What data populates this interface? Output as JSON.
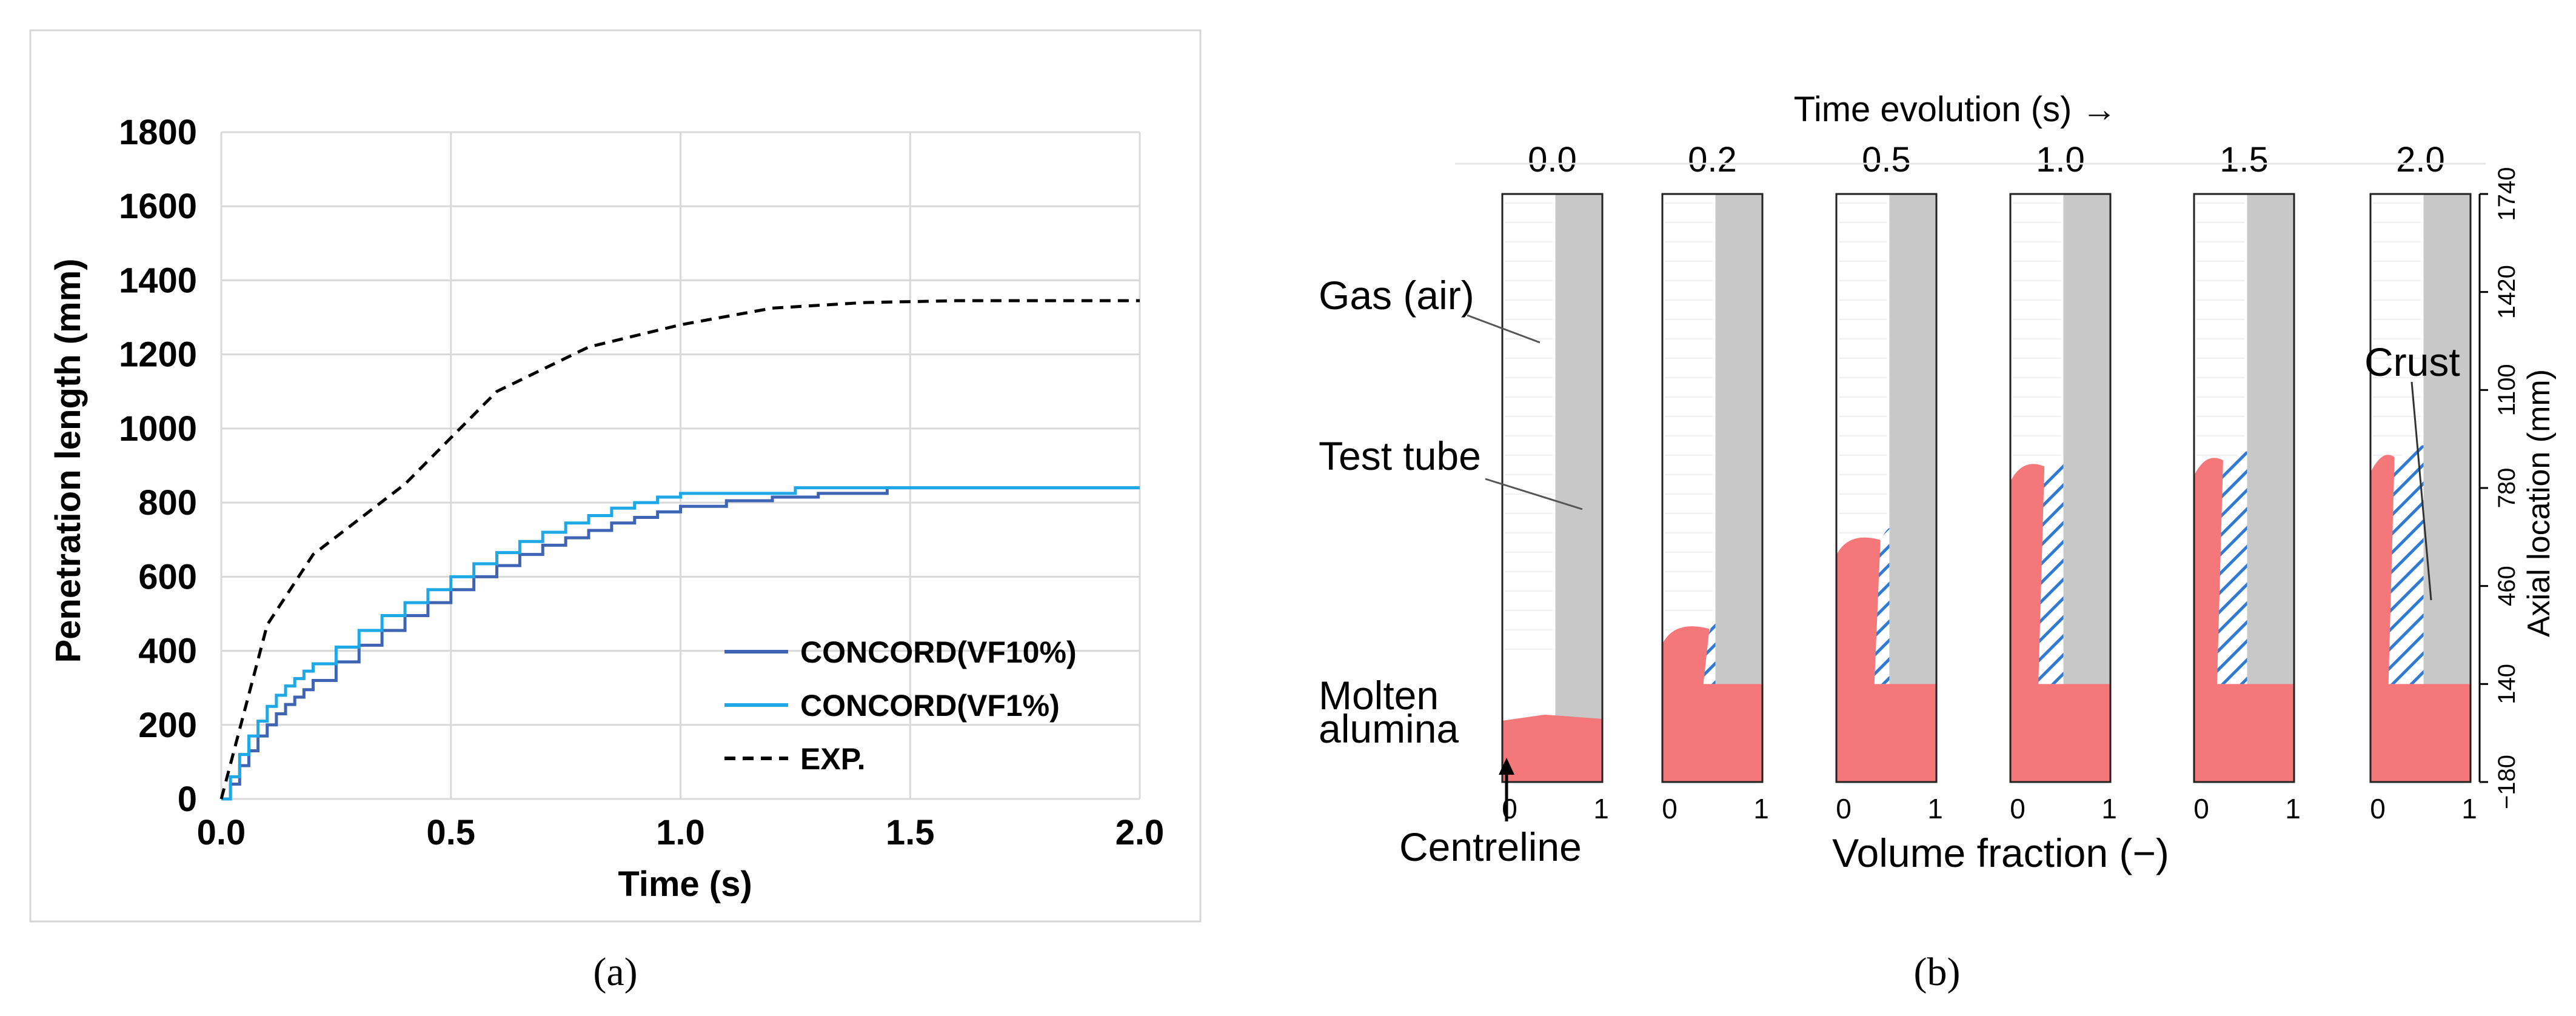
{
  "panels": {
    "a_caption": "(a)",
    "b_caption": "(b)"
  },
  "chart_data": [
    {
      "panel": "a",
      "type": "line",
      "title": "",
      "xlabel": "Time (s)",
      "ylabel": "Penetration length (mm)",
      "xlim": [
        0,
        2.0
      ],
      "ylim": [
        0,
        1800
      ],
      "xticks": [
        "0.0",
        "0.5",
        "1.0",
        "1.5",
        "2.0"
      ],
      "yticks": [
        "0",
        "200",
        "400",
        "600",
        "800",
        "1000",
        "1200",
        "1400",
        "1600",
        "1800"
      ],
      "grid": true,
      "legend_position": "bottom-right",
      "series": [
        {
          "name": "CONCORD(VF10%)",
          "color": "#3f64b4",
          "style": "step",
          "x": [
            0,
            0.02,
            0.04,
            0.06,
            0.08,
            0.1,
            0.12,
            0.14,
            0.16,
            0.18,
            0.2,
            0.25,
            0.3,
            0.35,
            0.4,
            0.45,
            0.5,
            0.55,
            0.6,
            0.65,
            0.7,
            0.75,
            0.8,
            0.85,
            0.9,
            0.95,
            1.0,
            1.1,
            1.2,
            1.3,
            1.45,
            2.0
          ],
          "y": [
            0,
            40,
            90,
            130,
            170,
            200,
            230,
            255,
            275,
            295,
            320,
            370,
            415,
            455,
            495,
            530,
            565,
            600,
            630,
            660,
            685,
            705,
            725,
            745,
            760,
            775,
            790,
            805,
            815,
            825,
            840,
            840
          ]
        },
        {
          "name": "CONCORD(VF1%)",
          "color": "#1ea8e6",
          "style": "step",
          "x": [
            0,
            0.02,
            0.04,
            0.06,
            0.08,
            0.1,
            0.12,
            0.14,
            0.16,
            0.18,
            0.2,
            0.25,
            0.3,
            0.35,
            0.4,
            0.45,
            0.5,
            0.55,
            0.6,
            0.65,
            0.7,
            0.75,
            0.8,
            0.85,
            0.9,
            0.95,
            1.0,
            1.25,
            2.0
          ],
          "y": [
            0,
            60,
            120,
            170,
            210,
            250,
            280,
            305,
            325,
            345,
            365,
            410,
            455,
            495,
            530,
            565,
            600,
            635,
            665,
            695,
            720,
            745,
            765,
            785,
            800,
            815,
            825,
            840,
            840
          ]
        },
        {
          "name": "EXP.",
          "color": "#000000",
          "style": "dashed",
          "x": [
            0,
            0.1,
            0.2,
            0.4,
            0.6,
            0.8,
            1.0,
            1.2,
            1.4,
            1.6,
            2.0
          ],
          "y": [
            0,
            470,
            660,
            850,
            1100,
            1220,
            1280,
            1325,
            1340,
            1345,
            1345
          ]
        }
      ]
    },
    {
      "panel": "b",
      "type": "other",
      "title": "Time evolution (s) →",
      "xlabel": "Volume fraction (−)",
      "ylabel": "Axial location (mm)",
      "time_labels": [
        "0.0",
        "0.2",
        "0.5",
        "1.0",
        "1.5",
        "2.0"
      ],
      "x_ticks": [
        "0",
        "1"
      ],
      "axial_ticks": [
        "−180",
        "140",
        "460",
        "780",
        "1100",
        "1420",
        "1740"
      ],
      "ylim": [
        -180,
        1740
      ],
      "annotations": [
        "Gas (air)",
        "Test tube",
        "Molten",
        "alumina",
        "Centreline",
        "Crust"
      ],
      "legend": [],
      "colors": {
        "molten": "#f4787a",
        "crust": "#2f7ad3",
        "tube": "#c8c8c8"
      },
      "snapshots": [
        {
          "time": 0.0,
          "melt_front_mm": 30,
          "crust_top_mm": null,
          "crust_width": 0.0
        },
        {
          "time": 0.2,
          "melt_front_mm": 350,
          "crust_top_mm": 350,
          "crust_width": 0.12
        },
        {
          "time": 0.5,
          "melt_front_mm": 640,
          "crust_top_mm": 650,
          "crust_width": 0.15
        },
        {
          "time": 1.0,
          "melt_front_mm": 880,
          "crust_top_mm": 880,
          "crust_width": 0.25
        },
        {
          "time": 1.5,
          "melt_front_mm": 900,
          "crust_top_mm": 900,
          "crust_width": 0.3
        },
        {
          "time": 2.0,
          "melt_front_mm": 910,
          "crust_top_mm": 920,
          "crust_width": 0.35
        }
      ]
    }
  ]
}
